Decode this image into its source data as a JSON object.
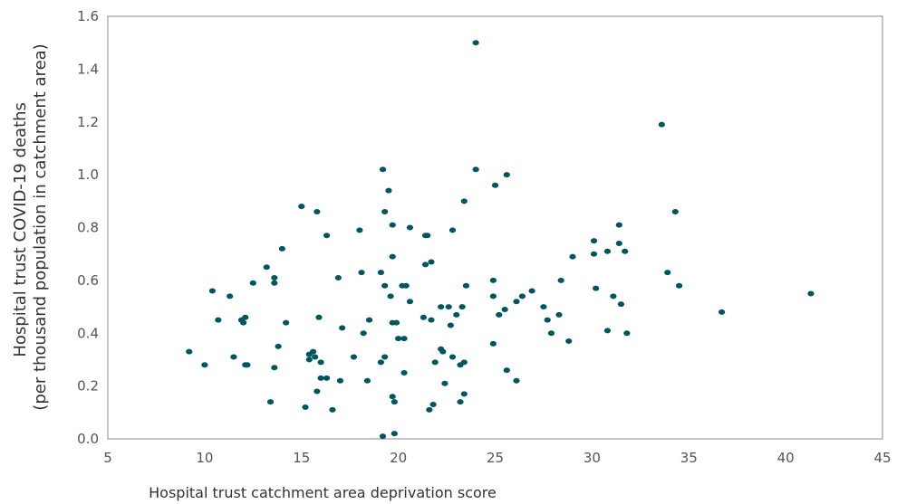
{
  "chart_data": {
    "type": "scatter",
    "title": "",
    "xlabel": "Hospital trust catchment area deprivation score",
    "ylabel_lines": [
      "Hospital trust COVID-19 deaths",
      "(per thousand population in catchment area)"
    ],
    "xlim": [
      5,
      45
    ],
    "ylim": [
      0,
      1.6
    ],
    "x_ticks": [
      "5",
      "10",
      "15",
      "20",
      "25",
      "30",
      "35",
      "40",
      "45"
    ],
    "y_ticks": [
      "0.0",
      "0.2",
      "0.4",
      "0.6",
      "0.8",
      "1.0",
      "1.2",
      "1.4",
      "1.6"
    ],
    "grid": false,
    "legend": "none",
    "point_color": "#00565e",
    "points": [
      [
        9.2,
        0.33
      ],
      [
        10,
        0.28
      ],
      [
        10.4,
        0.56
      ],
      [
        10.7,
        0.45
      ],
      [
        11.3,
        0.54
      ],
      [
        11.5,
        0.31
      ],
      [
        11.9,
        0.45
      ],
      [
        12.0,
        0.44
      ],
      [
        12.1,
        0.46
      ],
      [
        12.1,
        0.28
      ],
      [
        12.2,
        0.28
      ],
      [
        12.5,
        0.59
      ],
      [
        13.2,
        0.65
      ],
      [
        13.4,
        0.14
      ],
      [
        13.6,
        0.59
      ],
      [
        13.6,
        0.61
      ],
      [
        13.6,
        0.27
      ],
      [
        13.8,
        0.35
      ],
      [
        14.0,
        0.72
      ],
      [
        14.2,
        0.44
      ],
      [
        15.0,
        0.88
      ],
      [
        15.2,
        0.12
      ],
      [
        15.4,
        0.32
      ],
      [
        15.4,
        0.3
      ],
      [
        15.6,
        0.33
      ],
      [
        15.7,
        0.31
      ],
      [
        15.8,
        0.86
      ],
      [
        15.8,
        0.18
      ],
      [
        15.9,
        0.46
      ],
      [
        16.0,
        0.29
      ],
      [
        16.0,
        0.23
      ],
      [
        16.3,
        0.77
      ],
      [
        16.3,
        0.23
      ],
      [
        16.6,
        0.11
      ],
      [
        16.9,
        0.61
      ],
      [
        17.0,
        0.22
      ],
      [
        17.1,
        0.42
      ],
      [
        17.7,
        0.31
      ],
      [
        18.0,
        0.79
      ],
      [
        18.1,
        0.63
      ],
      [
        18.2,
        0.4
      ],
      [
        18.4,
        0.22
      ],
      [
        18.5,
        0.45
      ],
      [
        19.1,
        0.63
      ],
      [
        19.1,
        0.29
      ],
      [
        19.2,
        0.01
      ],
      [
        19.2,
        1.02
      ],
      [
        19.3,
        0.31
      ],
      [
        19.3,
        0.86
      ],
      [
        19.3,
        0.58
      ],
      [
        19.5,
        0.94
      ],
      [
        19.6,
        0.54
      ],
      [
        19.7,
        0.81
      ],
      [
        19.7,
        0.69
      ],
      [
        19.7,
        0.44
      ],
      [
        19.7,
        0.16
      ],
      [
        19.8,
        0.02
      ],
      [
        19.8,
        0.14
      ],
      [
        19.9,
        0.44
      ],
      [
        20.0,
        0.38
      ],
      [
        20.2,
        0.58
      ],
      [
        20.3,
        0.38
      ],
      [
        20.3,
        0.25
      ],
      [
        20.4,
        0.58
      ],
      [
        20.6,
        0.8
      ],
      [
        20.6,
        0.52
      ],
      [
        21.3,
        0.46
      ],
      [
        21.4,
        0.66
      ],
      [
        21.4,
        0.77
      ],
      [
        21.5,
        0.77
      ],
      [
        21.6,
        0.11
      ],
      [
        21.7,
        0.45
      ],
      [
        21.7,
        0.67
      ],
      [
        21.8,
        0.13
      ],
      [
        21.9,
        0.29
      ],
      [
        22.2,
        0.5
      ],
      [
        22.2,
        0.34
      ],
      [
        22.3,
        0.33
      ],
      [
        22.4,
        0.21
      ],
      [
        22.6,
        0.5
      ],
      [
        22.7,
        0.43
      ],
      [
        22.8,
        0.31
      ],
      [
        22.8,
        0.79
      ],
      [
        23.0,
        0.47
      ],
      [
        23.2,
        0.14
      ],
      [
        23.2,
        0.28
      ],
      [
        23.3,
        0.5
      ],
      [
        23.4,
        0.17
      ],
      [
        23.4,
        0.29
      ],
      [
        23.4,
        0.9
      ],
      [
        23.5,
        0.58
      ],
      [
        24.0,
        1.5
      ],
      [
        24.0,
        1.02
      ],
      [
        24.9,
        0.36
      ],
      [
        24.9,
        0.54
      ],
      [
        24.9,
        0.6
      ],
      [
        25.0,
        0.96
      ],
      [
        25.2,
        0.47
      ],
      [
        25.5,
        0.49
      ],
      [
        25.6,
        1.0
      ],
      [
        25.6,
        0.26
      ],
      [
        26.1,
        0.52
      ],
      [
        26.1,
        0.22
      ],
      [
        26.4,
        0.54
      ],
      [
        26.9,
        0.56
      ],
      [
        27.5,
        0.5
      ],
      [
        27.7,
        0.45
      ],
      [
        27.9,
        0.4
      ],
      [
        28.3,
        0.47
      ],
      [
        28.4,
        0.6
      ],
      [
        28.8,
        0.37
      ],
      [
        29.0,
        0.69
      ],
      [
        30.1,
        0.75
      ],
      [
        30.1,
        0.7
      ],
      [
        30.2,
        0.57
      ],
      [
        30.8,
        0.71
      ],
      [
        30.8,
        0.41
      ],
      [
        31.1,
        0.54
      ],
      [
        31.4,
        0.81
      ],
      [
        31.4,
        0.74
      ],
      [
        31.5,
        0.51
      ],
      [
        31.7,
        0.71
      ],
      [
        31.8,
        0.4
      ],
      [
        33.6,
        1.19
      ],
      [
        33.9,
        0.63
      ],
      [
        34.3,
        0.86
      ],
      [
        34.5,
        0.58
      ],
      [
        36.7,
        0.48
      ],
      [
        41.3,
        0.55
      ]
    ]
  }
}
